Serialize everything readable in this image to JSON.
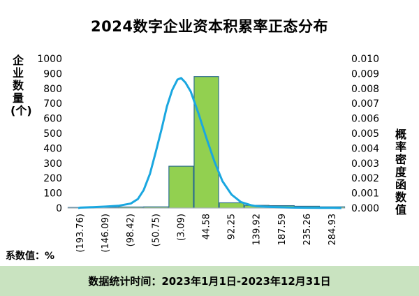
{
  "footer": {
    "date_range": "数据统计时间：2023年1月1日-2023年12月31日"
  },
  "unit_note": "系数值：%",
  "colors": {
    "bar_fill": "#92d050",
    "bar_stroke": "#2e6e8e",
    "curve": "#1aa7e0",
    "footer_bg": "#c9e3c0"
  },
  "chart_data": {
    "type": "bar",
    "title": "2024数字企业资本积累率正态分布",
    "ylabel": "企业数量(个)",
    "y2label": "概率密度函数值",
    "categories": [
      "(193.76)",
      "(146.09)",
      "(98.42)",
      "(50.75)",
      "(3.09)",
      "44.58",
      "92.25",
      "139.92",
      "187.59",
      "235.26",
      "284.93"
    ],
    "series": [
      {
        "type": "bar",
        "values": [
          2,
          5,
          7,
          8,
          280,
          880,
          35,
          18,
          16,
          12,
          8
        ]
      },
      {
        "type": "line",
        "axis": "right",
        "x": [
          -217,
          -193.76,
          -170,
          -146.09,
          -122,
          -98.42,
          -85,
          -74,
          -62,
          -50.75,
          -40,
          -30,
          -20,
          -10,
          -3.09,
          5,
          15,
          20,
          30,
          44.58,
          60,
          75,
          92.25,
          110,
          130,
          139.92,
          160,
          187.59,
          211,
          235.26,
          260,
          284.93,
          300
        ],
        "y": [
          0.0,
          3e-05,
          6e-05,
          0.0001,
          0.00015,
          0.0003,
          0.0006,
          0.0012,
          0.0023,
          0.0038,
          0.0053,
          0.0068,
          0.0079,
          0.0086,
          0.0087,
          0.0084,
          0.0078,
          0.0073,
          0.0063,
          0.0047,
          0.0031,
          0.0018,
          0.0009,
          0.0004,
          0.00018,
          0.00012,
          8e-05,
          5e-05,
          3e-05,
          2e-05,
          1e-05,
          1e-05,
          0.0
        ]
      }
    ],
    "ylim": [
      0,
      1000
    ],
    "y2lim": [
      0,
      0.01
    ],
    "yticks": [
      "0",
      "100",
      "200",
      "300",
      "400",
      "500",
      "600",
      "700",
      "800",
      "900",
      "1000"
    ],
    "y2ticks": [
      "0.000",
      "0.001",
      "0.002",
      "0.003",
      "0.004",
      "0.005",
      "0.006",
      "0.007",
      "0.008",
      "0.009",
      "0.010"
    ],
    "grid": false
  }
}
